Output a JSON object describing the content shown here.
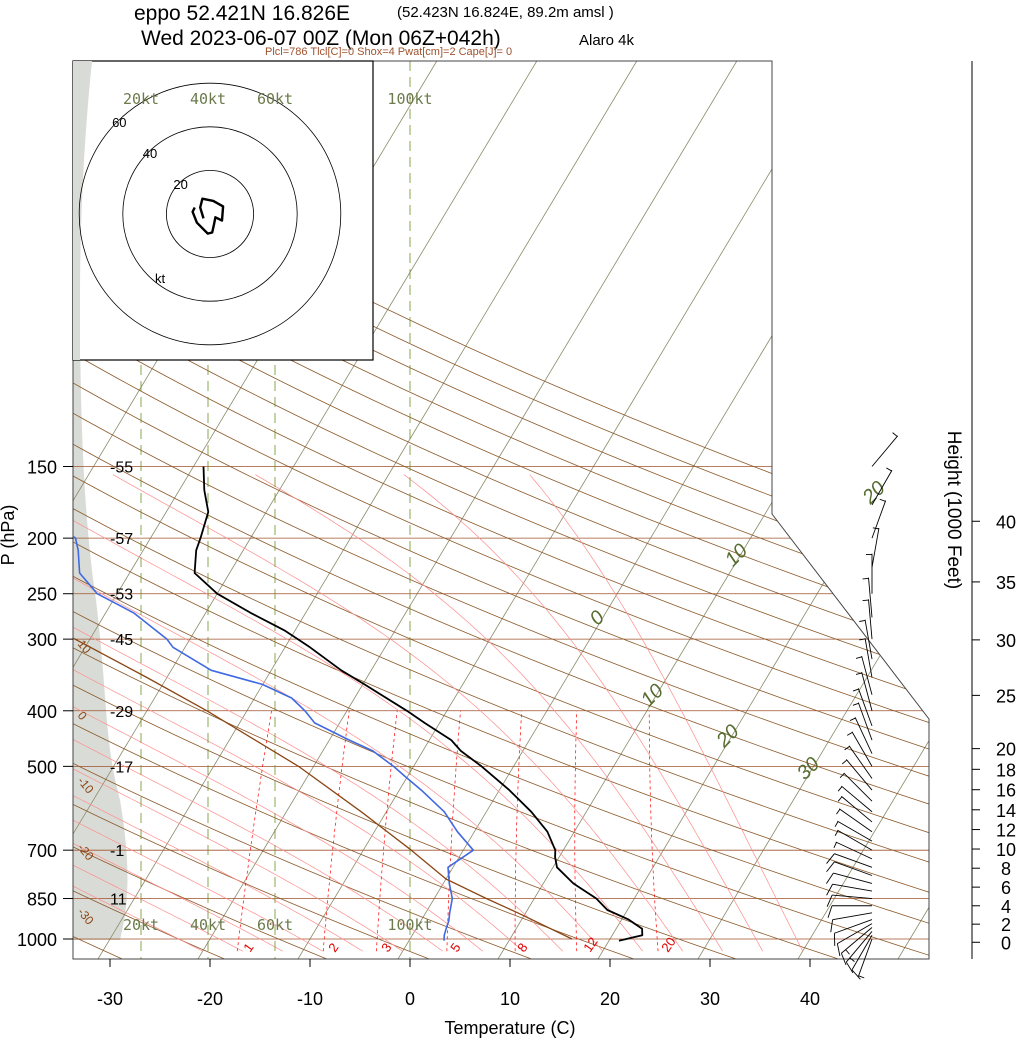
{
  "header": {
    "station": "eppo 52.421N 16.826E",
    "station_detail": "(52.423N 16.824E,  89.2m amsl )",
    "valid": "Wed 2023-06-07 00Z (Mon 06Z+042h)",
    "model": "Alaro 4k",
    "indices": "Plcl=786 Tlcl[C]=0 Shox=4 Pwat[cm]=2 Cape[J]= 0"
  },
  "colors": {
    "temperature": "#000000",
    "dewpoint": "#4169e1",
    "parcel": "#8b4513",
    "isobar": "#a0522d",
    "dry_adiabat": "#8b5a2b",
    "moist_adiabat": "#ff8c8c",
    "mixing_ratio": "#ff0000",
    "isotherm_label": "#556b2f",
    "shading": "#d9dcd6"
  },
  "chart_data": {
    "type": "line",
    "chart_kind": "skew-t log-p",
    "xlabel": "Temperature (C)",
    "ylabel": "P (hPa)",
    "y2label": "Height (1000 Feet)",
    "xlim": [
      -34,
      52
    ],
    "ylim_hpa": [
      1050,
      150
    ],
    "x_ticks": [
      "-30",
      "-20",
      "-10",
      "0",
      "10",
      "20",
      "30",
      "40"
    ],
    "pressure_levels": [
      {
        "p": 150,
        "label": "150",
        "std_temp": "-55"
      },
      {
        "p": 200,
        "label": "200",
        "std_temp": "-57"
      },
      {
        "p": 250,
        "label": "250",
        "std_temp": "-53"
      },
      {
        "p": 300,
        "label": "300",
        "std_temp": "-45"
      },
      {
        "p": 400,
        "label": "400",
        "std_temp": "-29"
      },
      {
        "p": 500,
        "label": "500",
        "std_temp": "-17"
      },
      {
        "p": 700,
        "label": "700",
        "std_temp": "-1"
      },
      {
        "p": 850,
        "label": "850",
        "std_temp": "11"
      },
      {
        "p": 1000,
        "label": "1000",
        "std_temp": ""
      }
    ],
    "height_ticks": [
      {
        "ft": 0,
        "label": "0"
      },
      {
        "ft": 2000,
        "label": "2"
      },
      {
        "ft": 4000,
        "label": "4"
      },
      {
        "ft": 6000,
        "label": "6"
      },
      {
        "ft": 8000,
        "label": "8"
      },
      {
        "ft": 10000,
        "label": "10"
      },
      {
        "ft": 12000,
        "label": "12"
      },
      {
        "ft": 14000,
        "label": "14"
      },
      {
        "ft": 16000,
        "label": "16"
      },
      {
        "ft": 18000,
        "label": "18"
      },
      {
        "ft": 20000,
        "label": "20"
      },
      {
        "ft": 25000,
        "label": "25"
      },
      {
        "ft": 30000,
        "label": "30"
      },
      {
        "ft": 35000,
        "label": "35"
      },
      {
        "ft": 40000,
        "label": "40"
      }
    ],
    "isotherm_labels": [
      {
        "t": 20,
        "p": 175,
        "label": "20"
      },
      {
        "t": 10,
        "p": 225,
        "label": "10"
      },
      {
        "t": 0,
        "p": 285,
        "label": "0"
      },
      {
        "t": 10,
        "p": 395,
        "label": "10"
      },
      {
        "t": 20,
        "p": 465,
        "label": "20"
      },
      {
        "t": 30,
        "p": 530,
        "label": "30"
      }
    ],
    "mixing_ratio_labels": [
      "1",
      "2",
      "3",
      "5",
      "8",
      "12",
      "20"
    ],
    "mixing_ratio_values": [
      1,
      2,
      3,
      5,
      8,
      12,
      20
    ],
    "dry_adiabat_labels": [
      {
        "label": "10",
        "p": 300
      },
      {
        "label": "0",
        "p": 400
      },
      {
        "label": "-10",
        "p": 520
      },
      {
        "label": "-20",
        "p": 680
      },
      {
        "label": "-30",
        "p": 880
      }
    ],
    "series": [
      {
        "name": "temperature",
        "points": [
          [
            1007,
            21.0
          ],
          [
            985,
            23.0
          ],
          [
            960,
            22.6
          ],
          [
            925,
            20.7
          ],
          [
            890,
            18.0
          ],
          [
            850,
            16.2
          ],
          [
            800,
            13.0
          ],
          [
            750,
            10.4
          ],
          [
            720,
            9.6
          ],
          [
            700,
            9.2
          ],
          [
            650,
            7.3
          ],
          [
            600,
            4.5
          ],
          [
            550,
            1.0
          ],
          [
            500,
            -3.2
          ],
          [
            470,
            -6.2
          ],
          [
            450,
            -7.8
          ],
          [
            420,
            -11.5
          ],
          [
            400,
            -14.0
          ],
          [
            360,
            -19.8
          ],
          [
            340,
            -23.0
          ],
          [
            310,
            -27.5
          ],
          [
            290,
            -31.0
          ],
          [
            270,
            -35.5
          ],
          [
            250,
            -40.0
          ],
          [
            230,
            -43.5
          ],
          [
            210,
            -44.7
          ],
          [
            200,
            -45.0
          ],
          [
            180,
            -45.8
          ],
          [
            165,
            -47.5
          ],
          [
            150,
            -49.0
          ]
        ]
      },
      {
        "name": "dewpoint",
        "points": [
          [
            1007,
            3.5
          ],
          [
            985,
            3.2
          ],
          [
            960,
            3.0
          ],
          [
            930,
            2.8
          ],
          [
            900,
            2.4
          ],
          [
            850,
            1.8
          ],
          [
            800,
            0.6
          ],
          [
            750,
            -0.5
          ],
          [
            700,
            1.0
          ],
          [
            650,
            -1.7
          ],
          [
            600,
            -4.2
          ],
          [
            550,
            -7.8
          ],
          [
            520,
            -10.3
          ],
          [
            500,
            -12.0
          ],
          [
            470,
            -15.0
          ],
          [
            450,
            -18.0
          ],
          [
            420,
            -22.5
          ],
          [
            400,
            -24.2
          ],
          [
            380,
            -26.3
          ],
          [
            360,
            -30.0
          ],
          [
            340,
            -36.0
          ],
          [
            310,
            -41.2
          ],
          [
            300,
            -42.3
          ],
          [
            270,
            -47.2
          ],
          [
            250,
            -52.0
          ],
          [
            230,
            -55.0
          ],
          [
            210,
            -56.5
          ],
          [
            200,
            -57.5
          ],
          [
            180,
            -63.0
          ],
          [
            165,
            -67.5
          ],
          [
            150,
            -73.0
          ]
        ]
      },
      {
        "name": "parcel",
        "points": [
          [
            1000,
            16.2
          ],
          [
            900,
            9.2
          ],
          [
            850,
            5.2
          ],
          [
            786,
            0.0
          ],
          [
            700,
            -5.2
          ],
          [
            600,
            -12.5
          ],
          [
            500,
            -21.5
          ],
          [
            400,
            -34.0
          ],
          [
            350,
            -42.0
          ],
          [
            300,
            -51.5
          ],
          [
            250,
            -63.0
          ],
          [
            200,
            -77.0
          ],
          [
            150,
            -94.0
          ]
        ]
      }
    ],
    "hodograph": {
      "rings_kt": [
        20,
        40,
        60
      ],
      "ring_labels": [
        "20",
        "40",
        "60"
      ],
      "unit": "kt",
      "points": [
        [
          -3,
          -2
        ],
        [
          -4.5,
          3
        ],
        [
          -3.5,
          7
        ],
        [
          1.5,
          6
        ],
        [
          6,
          3.5
        ],
        [
          5.5,
          -3
        ],
        [
          2.5,
          -1.5
        ],
        [
          1.8,
          -5
        ],
        [
          1,
          -8.5
        ],
        [
          -1,
          -9
        ],
        [
          -6,
          -4
        ],
        [
          -8,
          1
        ],
        [
          -7,
          3
        ]
      ]
    },
    "wind_speed_ref_labels": [
      "20kt",
      "40kt",
      "60kt",
      "100kt"
    ],
    "wind_barbs": [
      {
        "p": 1000,
        "dir": 200,
        "spd": 8
      },
      {
        "p": 985,
        "dir": 210,
        "spd": 14
      },
      {
        "p": 970,
        "dir": 220,
        "spd": 16
      },
      {
        "p": 955,
        "dir": 230,
        "spd": 15
      },
      {
        "p": 940,
        "dir": 240,
        "spd": 14
      },
      {
        "p": 925,
        "dir": 250,
        "spd": 13
      },
      {
        "p": 900,
        "dir": 260,
        "spd": 12
      },
      {
        "p": 875,
        "dir": 270,
        "spd": 11
      },
      {
        "p": 850,
        "dir": 275,
        "spd": 11
      },
      {
        "p": 825,
        "dir": 280,
        "spd": 11
      },
      {
        "p": 800,
        "dir": 285,
        "spd": 10
      },
      {
        "p": 775,
        "dir": 290,
        "spd": 10
      },
      {
        "p": 750,
        "dir": 290,
        "spd": 10
      },
      {
        "p": 725,
        "dir": 295,
        "spd": 9
      },
      {
        "p": 700,
        "dir": 300,
        "spd": 9
      },
      {
        "p": 675,
        "dir": 300,
        "spd": 9
      },
      {
        "p": 650,
        "dir": 305,
        "spd": 8
      },
      {
        "p": 625,
        "dir": 310,
        "spd": 8
      },
      {
        "p": 600,
        "dir": 310,
        "spd": 8
      },
      {
        "p": 575,
        "dir": 315,
        "spd": 8
      },
      {
        "p": 550,
        "dir": 320,
        "spd": 8
      },
      {
        "p": 525,
        "dir": 325,
        "spd": 7
      },
      {
        "p": 500,
        "dir": 330,
        "spd": 7
      },
      {
        "p": 475,
        "dir": 335,
        "spd": 7
      },
      {
        "p": 450,
        "dir": 340,
        "spd": 6
      },
      {
        "p": 425,
        "dir": 340,
        "spd": 6
      },
      {
        "p": 400,
        "dir": 345,
        "spd": 6
      },
      {
        "p": 375,
        "dir": 345,
        "spd": 6
      },
      {
        "p": 350,
        "dir": 350,
        "spd": 6
      },
      {
        "p": 325,
        "dir": 350,
        "spd": 6
      },
      {
        "p": 300,
        "dir": 355,
        "spd": 6
      },
      {
        "p": 275,
        "dir": 355,
        "spd": 6
      },
      {
        "p": 250,
        "dir": 0,
        "spd": 6
      },
      {
        "p": 225,
        "dir": 10,
        "spd": 6
      },
      {
        "p": 200,
        "dir": 20,
        "spd": 7
      },
      {
        "p": 175,
        "dir": 30,
        "spd": 7
      },
      {
        "p": 150,
        "dir": 40,
        "spd": 7
      }
    ]
  }
}
